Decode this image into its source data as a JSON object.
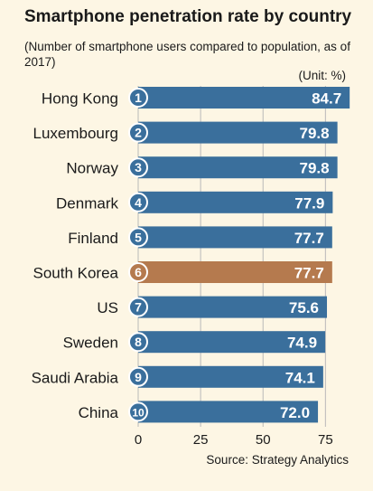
{
  "chart_data": {
    "type": "bar",
    "orientation": "horizontal",
    "title": "Smartphone penetration rate by country",
    "subtitle": "(Number of smartphone users compared to population, as of 2017)",
    "unit_label": "(Unit: %)",
    "source": "Source: Strategy Analytics",
    "categories": [
      "Hong Kong",
      "Luxembourg",
      "Norway",
      "Denmark",
      "Finland",
      "South Korea",
      "US",
      "Sweden",
      "Saudi Arabia",
      "China"
    ],
    "ranks": [
      "1",
      "2",
      "3",
      "4",
      "5",
      "6",
      "7",
      "8",
      "9",
      "10"
    ],
    "values": [
      84.7,
      79.8,
      79.8,
      77.9,
      77.7,
      77.7,
      75.6,
      74.9,
      74.1,
      72.0
    ],
    "value_labels": [
      "84.7",
      "79.8",
      "79.8",
      "77.9",
      "77.7",
      "77.7",
      "75.6",
      "74.9",
      "74.1",
      "72.0"
    ],
    "highlight": "South Korea",
    "xlim": [
      0,
      85
    ],
    "xticks": [
      0,
      25,
      50,
      75
    ],
    "grid": true,
    "legend": "none",
    "colors": {
      "bar": "#3a6f9c",
      "highlight": "#b57a4e",
      "grid": "#b9b9b9",
      "background": "#fdf6e4",
      "label": "#ffffff"
    }
  }
}
